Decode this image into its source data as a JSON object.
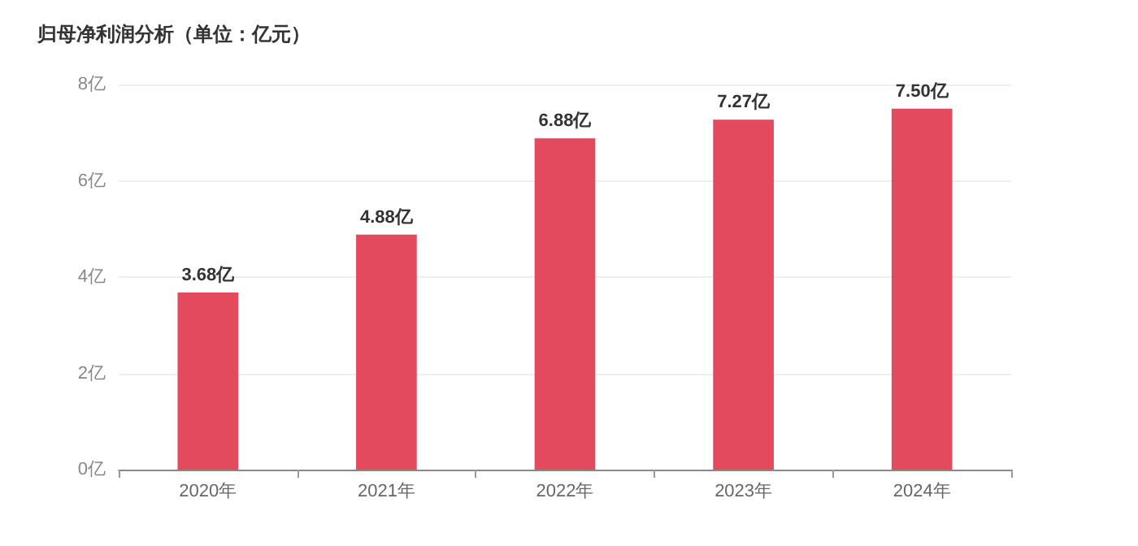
{
  "chart_data": {
    "type": "bar",
    "title": "归母净利润分析（单位：亿元）",
    "categories": [
      "2020年",
      "2021年",
      "2022年",
      "2023年",
      "2024年"
    ],
    "values": [
      3.68,
      4.88,
      6.88,
      7.27,
      7.5
    ],
    "value_labels": [
      "3.68亿",
      "4.88亿",
      "6.88亿",
      "7.27亿",
      "7.50亿"
    ],
    "color": "#e34a5e",
    "ylim": [
      0,
      8
    ],
    "yticks": [
      {
        "value": 0,
        "label": "0亿"
      },
      {
        "value": 2,
        "label": "2亿"
      },
      {
        "value": 4,
        "label": "4亿"
      },
      {
        "value": 6,
        "label": "6亿"
      },
      {
        "value": 8,
        "label": "8亿"
      }
    ],
    "grid": "y"
  }
}
